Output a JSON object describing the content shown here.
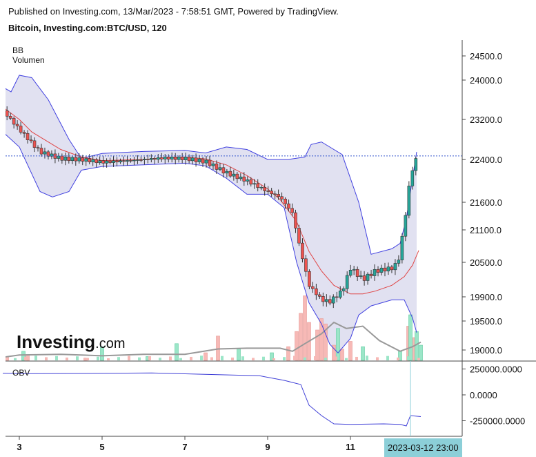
{
  "header": {
    "published": "Published on Investing.com, 13/Mar/2023 - 7:58:51 GMT, Powered by TradingView.",
    "symbol": "Bitcoin, Investing.com:BTC/USD, 120"
  },
  "legend": {
    "bb": "BB",
    "volume": "Volumen",
    "obv": "OBV"
  },
  "watermark": {
    "text": "Investing",
    "suffix": ".com"
  },
  "crosshair_label": "2023-03-12 23:00",
  "colors": {
    "up": "#26a69a",
    "down": "#ef5350",
    "upVol": "#9be6c8",
    "downVol": "#f7b9b6",
    "bbBand": "#4040e0",
    "bbFill": "#e1e1f1",
    "bbBasis": "#e04545",
    "obv": "#3c3cd6",
    "volMa": "#999999",
    "lastPrice": "#3355cc",
    "crosshair": "#8ccfd8"
  },
  "chart_data": {
    "type": "candlestick",
    "x_ticks": [
      "3",
      "5",
      "7",
      "9",
      "11"
    ],
    "price_ticks": [
      "24500.0",
      "24000.0",
      "23200.0",
      "22400.0",
      "21600.0",
      "21100.0",
      "20500.0",
      "19900.0",
      "19500.0",
      "19000.0"
    ],
    "obv_ticks": [
      "250000.0000",
      "0.0000",
      "-250000.0000"
    ],
    "last_price": 22470,
    "series": [
      {
        "name": "BB",
        "close_path": [
          [
            2.6,
            23380
          ],
          [
            3,
            23000
          ],
          [
            3.5,
            22550
          ],
          [
            4,
            22420
          ],
          [
            4.5,
            22400
          ],
          [
            5,
            22350
          ],
          [
            5.5,
            22370
          ],
          [
            6,
            22400
          ],
          [
            6.5,
            22430
          ],
          [
            7,
            22420
          ],
          [
            7.5,
            22360
          ],
          [
            8,
            22150
          ],
          [
            8.5,
            22000
          ],
          [
            9,
            21800
          ],
          [
            9.3,
            21700
          ],
          [
            9.6,
            21400
          ],
          [
            9.8,
            20700
          ],
          [
            10,
            20100
          ],
          [
            10.3,
            19850
          ],
          [
            10.5,
            19820
          ],
          [
            10.8,
            20000
          ],
          [
            11,
            20400
          ],
          [
            11.3,
            20200
          ],
          [
            11.6,
            20350
          ],
          [
            12,
            20400
          ],
          [
            12.15,
            20500
          ],
          [
            12.3,
            21200
          ],
          [
            12.45,
            22100
          ],
          [
            12.6,
            22450
          ],
          [
            12.65,
            22500
          ]
        ],
        "upper": [
          [
            2.6,
            23860
          ],
          [
            2.8,
            23760
          ],
          [
            3,
            24100
          ],
          [
            3.3,
            24050
          ],
          [
            3.7,
            23600
          ],
          [
            4.2,
            22800
          ],
          [
            4.5,
            22420
          ],
          [
            5,
            22520
          ],
          [
            6,
            22560
          ],
          [
            7,
            22580
          ],
          [
            7.5,
            22530
          ],
          [
            8,
            22650
          ],
          [
            8.5,
            22600
          ],
          [
            9,
            22400
          ],
          [
            9.5,
            22400
          ],
          [
            9.9,
            22450
          ],
          [
            10.05,
            22700
          ],
          [
            10.3,
            22750
          ],
          [
            10.8,
            22500
          ],
          [
            11.2,
            21600
          ],
          [
            11.5,
            20650
          ],
          [
            12,
            20750
          ],
          [
            12.2,
            20850
          ],
          [
            12.35,
            21300
          ],
          [
            12.5,
            22050
          ],
          [
            12.6,
            22550
          ]
        ],
        "lower": [
          [
            2.6,
            22950
          ],
          [
            3,
            22650
          ],
          [
            3.5,
            21800
          ],
          [
            3.8,
            21700
          ],
          [
            4.2,
            21800
          ],
          [
            4.5,
            22200
          ],
          [
            5,
            22270
          ],
          [
            6,
            22300
          ],
          [
            7,
            22330
          ],
          [
            7.5,
            22280
          ],
          [
            8,
            22050
          ],
          [
            8.5,
            21750
          ],
          [
            9,
            21750
          ],
          [
            9.4,
            21500
          ],
          [
            9.7,
            20500
          ],
          [
            10,
            19800
          ],
          [
            10.3,
            19450
          ],
          [
            10.5,
            19100
          ],
          [
            10.7,
            18950
          ],
          [
            11,
            19200
          ],
          [
            11.2,
            19600
          ],
          [
            11.5,
            19750
          ],
          [
            12,
            19850
          ],
          [
            12.3,
            19850
          ],
          [
            12.5,
            19550
          ],
          [
            12.6,
            19300
          ]
        ],
        "basis": [
          [
            2.6,
            23450
          ],
          [
            3,
            23200
          ],
          [
            3.3,
            22950
          ],
          [
            4,
            22600
          ],
          [
            4.5,
            22450
          ],
          [
            5,
            22380
          ],
          [
            6,
            22400
          ],
          [
            7,
            22450
          ],
          [
            7.5,
            22410
          ],
          [
            8,
            22300
          ],
          [
            8.5,
            22100
          ],
          [
            9,
            21850
          ],
          [
            9.3,
            21650
          ],
          [
            9.7,
            21250
          ],
          [
            10,
            20700
          ],
          [
            10.3,
            20350
          ],
          [
            10.6,
            20100
          ],
          [
            11,
            19950
          ],
          [
            11.3,
            19950
          ],
          [
            11.6,
            20000
          ],
          [
            12,
            20100
          ],
          [
            12.3,
            20250
          ],
          [
            12.5,
            20450
          ],
          [
            12.65,
            20720
          ]
        ]
      },
      {
        "name": "Volumen",
        "down_volume_rel": [
          [
            2.7,
            0.05
          ],
          [
            3.2,
            0.07
          ],
          [
            4.6,
            0.03
          ],
          [
            7.5,
            0.1
          ],
          [
            7.8,
            0.32
          ],
          [
            9.5,
            0.18
          ],
          [
            9.7,
            0.38
          ],
          [
            9.8,
            0.62
          ],
          [
            9.9,
            0.85
          ],
          [
            10,
            0.5
          ],
          [
            10.2,
            0.4
          ],
          [
            10.3,
            0.55
          ],
          [
            10.4,
            0.48
          ],
          [
            10.6,
            0.2
          ],
          [
            10.8,
            0.15
          ],
          [
            11,
            0.25
          ],
          [
            12.4,
            0.45
          ],
          [
            12.55,
            0.3
          ]
        ],
        "up_volume_rel": [
          [
            3.1,
            0.12
          ],
          [
            5,
            0.18
          ],
          [
            6.1,
            0.05
          ],
          [
            6.8,
            0.22
          ],
          [
            8.3,
            0.15
          ],
          [
            9.1,
            0.1
          ],
          [
            10.7,
            0.42
          ],
          [
            11.3,
            0.18
          ],
          [
            12.2,
            0.12
          ],
          [
            12.45,
            0.6
          ],
          [
            12.6,
            0.38
          ],
          [
            12.7,
            0.2
          ]
        ],
        "ma": [
          [
            2.6,
            0.04
          ],
          [
            3,
            0.07
          ],
          [
            4,
            0.08
          ],
          [
            5,
            0.06
          ],
          [
            6,
            0.08
          ],
          [
            7,
            0.08
          ],
          [
            7.8,
            0.15
          ],
          [
            8.5,
            0.16
          ],
          [
            9.3,
            0.16
          ],
          [
            9.6,
            0.12
          ],
          [
            9.9,
            0.22
          ],
          [
            10.3,
            0.35
          ],
          [
            10.6,
            0.5
          ],
          [
            10.9,
            0.42
          ],
          [
            11.3,
            0.45
          ],
          [
            11.7,
            0.26
          ],
          [
            12.2,
            0.12
          ],
          [
            12.5,
            0.18
          ],
          [
            12.7,
            0.24
          ]
        ]
      },
      {
        "name": "OBV",
        "points": [
          [
            2.6,
            210000
          ],
          [
            3.2,
            205000
          ],
          [
            5,
            208000
          ],
          [
            6.2,
            212000
          ],
          [
            7.8,
            195000
          ],
          [
            8.8,
            185000
          ],
          [
            9.4,
            140000
          ],
          [
            9.8,
            100000
          ],
          [
            10,
            -100000
          ],
          [
            10.3,
            -200000
          ],
          [
            10.6,
            -280000
          ],
          [
            11,
            -285000
          ],
          [
            11.8,
            -280000
          ],
          [
            12.2,
            -285000
          ],
          [
            12.35,
            -300000
          ],
          [
            12.45,
            -200000
          ],
          [
            12.7,
            -210000
          ]
        ]
      }
    ]
  }
}
